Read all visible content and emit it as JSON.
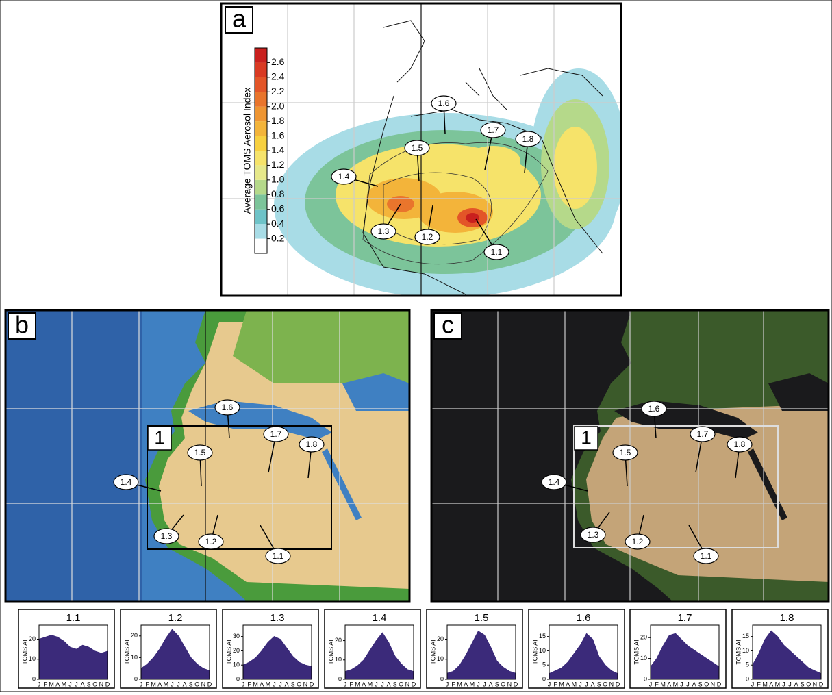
{
  "maps": {
    "a": {
      "label": "a",
      "colorbar": {
        "title": "Average TOMS Aerosol Index",
        "ylim": [
          0,
          2.8
        ],
        "ticks": [
          0.2,
          0.4,
          0.6,
          0.8,
          {
            "value": 1,
            "label": "1.0"
          },
          1.2,
          1.4,
          1.6,
          1.8,
          {
            "value": 2,
            "label": "2.0"
          },
          2.2,
          2.4,
          2.6
        ],
        "colors": [
          "#ffffff",
          "#a8dce6",
          "#6ec3c8",
          "#7cc49a",
          "#b5d98a",
          "#e6e88a",
          "#f6e36a",
          "#f7d040",
          "#f3b43a",
          "#ee9532",
          "#e9752c",
          "#e35528",
          "#d93a23",
          "#c9201e"
        ]
      }
    },
    "b": {
      "label": "b"
    },
    "c": {
      "label": "c"
    },
    "box_label": "1",
    "sites": [
      "1.1",
      "1.2",
      "1.3",
      "1.4",
      "1.5",
      "1.6",
      "1.7",
      "1.8"
    ]
  },
  "chart_data": [
    {
      "type": "area",
      "title": "1.1",
      "y_label": "TOMS AI",
      "color": "#3b2a7a",
      "categories": [
        "J",
        "F",
        "M",
        "A",
        "M",
        "J",
        "J",
        "A",
        "S",
        "O",
        "N",
        "D"
      ],
      "values": [
        20,
        21,
        22,
        21,
        19,
        16,
        15,
        17,
        16,
        14,
        13,
        14
      ],
      "ylim": [
        0,
        27
      ],
      "yticks": [
        0,
        10,
        20
      ]
    },
    {
      "type": "area",
      "title": "1.2",
      "y_label": "TOMS AI",
      "color": "#3b2a7a",
      "categories": [
        "J",
        "F",
        "M",
        "A",
        "M",
        "J",
        "J",
        "A",
        "S",
        "O",
        "N",
        "D"
      ],
      "values": [
        5,
        7,
        10,
        14,
        19,
        23,
        20,
        15,
        10,
        7,
        5,
        4
      ],
      "ylim": [
        0,
        25
      ],
      "yticks": [
        0,
        10,
        20
      ]
    },
    {
      "type": "area",
      "title": "1.3",
      "y_label": "TOMS AI",
      "color": "#3b2a7a",
      "categories": [
        "J",
        "F",
        "M",
        "A",
        "M",
        "J",
        "J",
        "A",
        "S",
        "O",
        "N",
        "D"
      ],
      "values": [
        10,
        12,
        15,
        20,
        26,
        30,
        28,
        22,
        16,
        12,
        10,
        9
      ],
      "ylim": [
        0,
        38
      ],
      "yticks": [
        0,
        10,
        20,
        30
      ]
    },
    {
      "type": "area",
      "title": "1.4",
      "y_label": "TOMS AI",
      "color": "#3b2a7a",
      "categories": [
        "J",
        "F",
        "M",
        "A",
        "M",
        "J",
        "J",
        "A",
        "S",
        "O",
        "N",
        "D"
      ],
      "values": [
        4,
        5,
        7,
        10,
        15,
        20,
        24,
        19,
        12,
        8,
        5,
        4
      ],
      "ylim": [
        0,
        28
      ],
      "yticks": [
        0,
        10,
        20
      ]
    },
    {
      "type": "area",
      "title": "1.5",
      "y_label": "TOMS AI",
      "color": "#3b2a7a",
      "categories": [
        "J",
        "F",
        "M",
        "A",
        "M",
        "J",
        "J",
        "A",
        "S",
        "O",
        "N",
        "D"
      ],
      "values": [
        3,
        4,
        7,
        12,
        18,
        24,
        22,
        16,
        9,
        6,
        4,
        3
      ],
      "ylim": [
        0,
        27
      ],
      "yticks": [
        0,
        10,
        20
      ]
    },
    {
      "type": "area",
      "title": "1.6",
      "y_label": "TOMS AI",
      "color": "#3b2a7a",
      "categories": [
        "J",
        "F",
        "M",
        "A",
        "M",
        "J",
        "J",
        "A",
        "S",
        "O",
        "N",
        "D"
      ],
      "values": [
        2,
        3,
        4,
        6,
        9,
        12,
        16,
        14,
        8,
        5,
        3,
        2
      ],
      "ylim": [
        0,
        19
      ],
      "yticks": [
        0,
        5,
        10,
        15
      ]
    },
    {
      "type": "area",
      "title": "1.7",
      "y_label": "TOMS AI",
      "color": "#3b2a7a",
      "categories": [
        "J",
        "F",
        "M",
        "A",
        "M",
        "J",
        "J",
        "A",
        "S",
        "O",
        "N",
        "D"
      ],
      "values": [
        6,
        10,
        16,
        21,
        22,
        19,
        16,
        14,
        12,
        10,
        8,
        6
      ],
      "ylim": [
        0,
        26
      ],
      "yticks": [
        0,
        10,
        20
      ]
    },
    {
      "type": "area",
      "title": "1.8",
      "y_label": "TOMS AI",
      "color": "#3b2a7a",
      "categories": [
        "J",
        "F",
        "M",
        "A",
        "M",
        "J",
        "J",
        "A",
        "S",
        "O",
        "N",
        "D"
      ],
      "values": [
        5,
        9,
        14,
        17,
        15,
        12,
        10,
        8,
        6,
        4,
        3,
        2
      ],
      "ylim": [
        0,
        19
      ],
      "yticks": [
        0,
        5,
        10,
        15
      ]
    }
  ]
}
